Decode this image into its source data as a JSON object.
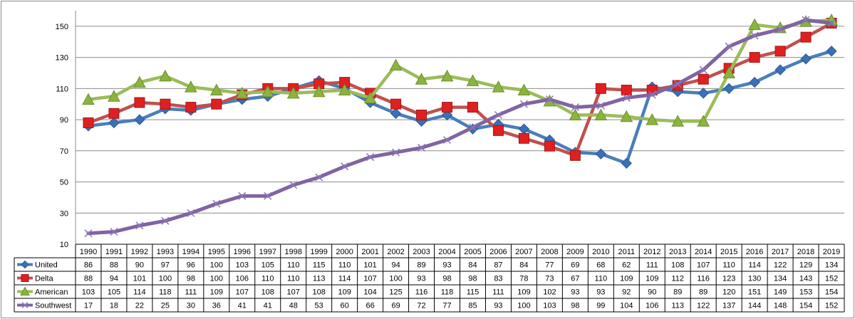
{
  "chart_data": {
    "type": "line",
    "title": "",
    "xlabel": "",
    "ylabel": "",
    "ylim": [
      10,
      160
    ],
    "yticks": [
      10,
      30,
      50,
      70,
      90,
      110,
      130,
      150
    ],
    "grid": true,
    "legend_position": "data-table-left",
    "categories": [
      "1990",
      "1991",
      "1992",
      "1993",
      "1994",
      "1995",
      "1996",
      "1997",
      "1998",
      "1999",
      "2000",
      "2001",
      "2002",
      "2003",
      "2004",
      "2005",
      "2006",
      "2007",
      "2008",
      "2009",
      "2010",
      "2011",
      "2012",
      "2013",
      "2014",
      "2015",
      "2016",
      "2017",
      "2018",
      "2019"
    ],
    "series": [
      {
        "name": "United",
        "color": "#4a7ebb",
        "marker": "diamond",
        "markerColor": "#3a70b8",
        "values": [
          86,
          88,
          90,
          97,
          96,
          100,
          103,
          105,
          110,
          115,
          110,
          101,
          94,
          89,
          93,
          84,
          87,
          84,
          77,
          69,
          68,
          62,
          111,
          108,
          107,
          110,
          114,
          122,
          129,
          134
        ]
      },
      {
        "name": "Delta",
        "color": "#c0504d",
        "marker": "square",
        "markerColor": "#e02020",
        "values": [
          88,
          94,
          101,
          100,
          98,
          100,
          106,
          110,
          110,
          113,
          114,
          107,
          100,
          93,
          98,
          98,
          83,
          78,
          73,
          67,
          110,
          109,
          109,
          112,
          116,
          123,
          130,
          134,
          143,
          152
        ]
      },
      {
        "name": "American",
        "color": "#9bbb59",
        "marker": "triangle",
        "markerColor": "#8ab43e",
        "values": [
          103,
          105,
          114,
          118,
          111,
          109,
          107,
          108,
          107,
          108,
          109,
          104,
          125,
          116,
          118,
          115,
          111,
          109,
          102,
          93,
          93,
          92,
          90,
          89,
          89,
          120,
          151,
          149,
          153,
          154
        ]
      },
      {
        "name": "Southwest",
        "color": "#8064a2",
        "marker": "x",
        "markerColor": "#8a78b8",
        "values": [
          17,
          18,
          22,
          25,
          30,
          36,
          41,
          41,
          48,
          53,
          60,
          66,
          69,
          72,
          77,
          85,
          93,
          100,
          103,
          98,
          99,
          104,
          106,
          113,
          122,
          137,
          144,
          148,
          154,
          152
        ]
      }
    ]
  }
}
